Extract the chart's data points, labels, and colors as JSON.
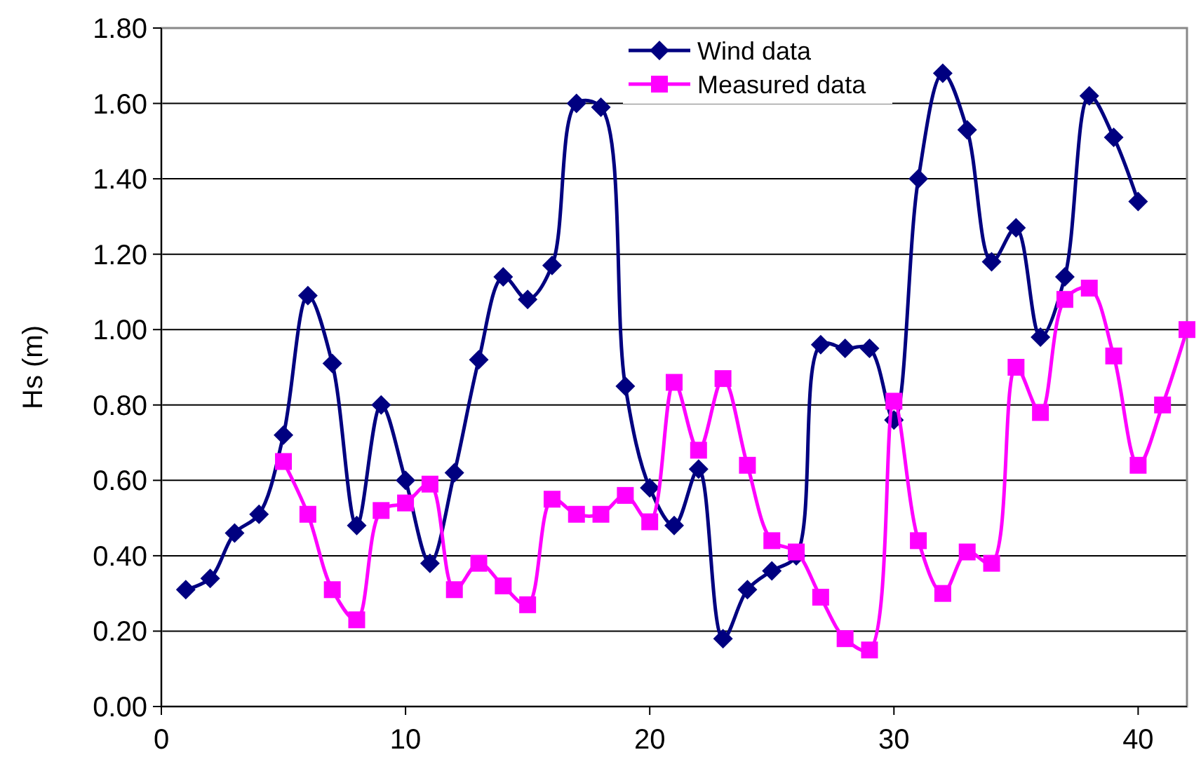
{
  "chart_data": {
    "type": "line",
    "ylabel": "Hs (m)",
    "xlim": [
      0,
      42
    ],
    "xticks": [
      0,
      10,
      20,
      30,
      40
    ],
    "ylim": [
      0,
      1.8
    ],
    "yticks": [
      {
        "value": 0,
        "label": "0.00"
      },
      {
        "value": 0.2,
        "label": "0.20"
      },
      {
        "value": 0.4,
        "label": "0.40"
      },
      {
        "value": 0.6,
        "label": "0.60"
      },
      {
        "value": 0.8,
        "label": "0.80"
      },
      {
        "value": 1.0,
        "label": "1.00"
      },
      {
        "value": 1.2,
        "label": "1.20"
      },
      {
        "value": 1.4,
        "label": "1.40"
      },
      {
        "value": 1.6,
        "label": "1.60"
      },
      {
        "value": 1.8,
        "label": "1.80"
      }
    ],
    "grid": "y",
    "legend": "top",
    "series": [
      {
        "name": "Wind data",
        "color": "#000080",
        "marker": "diamond",
        "x": [
          1,
          2,
          3,
          4,
          5,
          6,
          7,
          8,
          9,
          10,
          11,
          12,
          13,
          14,
          15,
          16,
          17,
          18,
          19,
          20,
          21,
          22,
          23,
          24,
          25,
          26,
          27,
          28,
          29,
          30,
          31,
          32,
          33,
          34,
          35,
          36,
          37,
          38,
          39,
          40
        ],
        "values": [
          0.31,
          0.34,
          0.46,
          0.51,
          0.72,
          1.09,
          0.91,
          0.48,
          0.8,
          0.6,
          0.38,
          0.62,
          0.92,
          1.14,
          1.08,
          1.17,
          1.6,
          1.59,
          0.85,
          0.58,
          0.48,
          0.63,
          0.18,
          0.31,
          0.36,
          0.4,
          0.96,
          0.95,
          0.95,
          0.76,
          1.4,
          1.68,
          1.53,
          1.18,
          1.27,
          0.98,
          1.14,
          1.62,
          1.51,
          1.34
        ]
      },
      {
        "name": "Measured data",
        "color": "#ff00ff",
        "marker": "square",
        "x": [
          5,
          6,
          7,
          8,
          9,
          10,
          11,
          12,
          13,
          14,
          15,
          16,
          17,
          18,
          19,
          20,
          21,
          22,
          23,
          24,
          25,
          26,
          27,
          28,
          29,
          30,
          31,
          32,
          33,
          34,
          35,
          36,
          37,
          38,
          39,
          40,
          41,
          42
        ],
        "values": [
          0.65,
          0.51,
          0.31,
          0.23,
          0.52,
          0.54,
          0.59,
          0.31,
          0.38,
          0.32,
          0.27,
          0.55,
          0.51,
          0.51,
          0.56,
          0.49,
          0.86,
          0.68,
          0.87,
          0.64,
          0.44,
          0.41,
          0.29,
          0.18,
          0.15,
          0.81,
          0.44,
          0.3,
          0.41,
          0.38,
          0.9,
          0.78,
          1.08,
          1.11,
          0.93,
          0.64,
          0.8,
          1.0
        ]
      }
    ]
  }
}
